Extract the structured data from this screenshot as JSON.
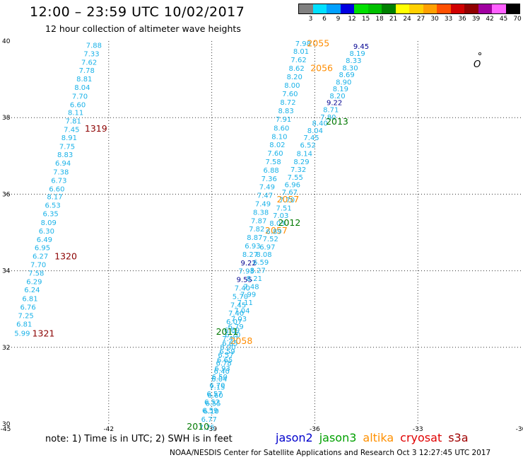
{
  "header": {
    "title": "12:00 – 23:59 UTC 10/02/2017",
    "subtitle": "12 hour collection of altimeter wave heights"
  },
  "color_scale": {
    "unit": "(ft)",
    "bins": [
      {
        "label": "3",
        "color": "#808080"
      },
      {
        "label": "6",
        "color": "#00e0ff"
      },
      {
        "label": "9",
        "color": "#00a0ff"
      },
      {
        "label": "12",
        "color": "#0000e0"
      },
      {
        "label": "15",
        "color": "#00e000"
      },
      {
        "label": "18",
        "color": "#00c000"
      },
      {
        "label": "21",
        "color": "#008000"
      },
      {
        "label": "24",
        "color": "#ffff00"
      },
      {
        "label": "27",
        "color": "#ffd000"
      },
      {
        "label": "30",
        "color": "#ffa000"
      },
      {
        "label": "33",
        "color": "#ff5000"
      },
      {
        "label": "36",
        "color": "#d00000"
      },
      {
        "label": "39",
        "color": "#900000"
      },
      {
        "label": "42",
        "color": "#a000a0"
      },
      {
        "label": "45",
        "color": "#ff60ff"
      },
      {
        "label": "70",
        "color": "#000000"
      }
    ]
  },
  "map": {
    "lon_range": [
      -45,
      -30
    ],
    "lat_range": [
      30,
      40
    ],
    "lon_ticks": [
      "-45",
      "-42",
      "-39",
      "-36",
      "-33",
      "-30"
    ],
    "lat_ticks": [
      "30",
      "32",
      "34",
      "36",
      "38",
      "40"
    ],
    "island_label": "O",
    "colors": {
      "cyan": "#1ab2e8",
      "darkblue": "#000090",
      "green": "#007800",
      "orange": "#ff8c00",
      "darkred": "#8b0000"
    },
    "values": [
      {
        "t": "7.88",
        "lon": -42.43,
        "lat": 39.88,
        "c": "cyan"
      },
      {
        "t": "7.33",
        "lon": -42.5,
        "lat": 39.66,
        "c": "cyan"
      },
      {
        "t": "7.62",
        "lon": -42.57,
        "lat": 39.44,
        "c": "cyan"
      },
      {
        "t": "7.78",
        "lon": -42.64,
        "lat": 39.22,
        "c": "cyan"
      },
      {
        "t": "8.81",
        "lon": -42.71,
        "lat": 39.0,
        "c": "cyan"
      },
      {
        "t": "8.04",
        "lon": -42.77,
        "lat": 38.78,
        "c": "cyan"
      },
      {
        "t": "7.70",
        "lon": -42.84,
        "lat": 38.55,
        "c": "cyan"
      },
      {
        "t": "6.60",
        "lon": -42.9,
        "lat": 38.33,
        "c": "cyan"
      },
      {
        "t": "8.11",
        "lon": -42.96,
        "lat": 38.12,
        "c": "cyan"
      },
      {
        "t": "7.81",
        "lon": -43.03,
        "lat": 37.9,
        "c": "cyan"
      },
      {
        "t": "7.45",
        "lon": -43.08,
        "lat": 37.68,
        "c": "cyan"
      },
      {
        "t": "8.91",
        "lon": -43.15,
        "lat": 37.47,
        "c": "cyan"
      },
      {
        "t": "7.75",
        "lon": -43.21,
        "lat": 37.24,
        "c": "cyan"
      },
      {
        "t": "8.83",
        "lon": -43.27,
        "lat": 37.02,
        "c": "cyan"
      },
      {
        "t": "6.94",
        "lon": -43.33,
        "lat": 36.8,
        "c": "cyan"
      },
      {
        "t": "7.38",
        "lon": -43.39,
        "lat": 36.57,
        "c": "cyan"
      },
      {
        "t": "6.73",
        "lon": -43.45,
        "lat": 36.35,
        "c": "cyan"
      },
      {
        "t": "6.60",
        "lon": -43.51,
        "lat": 36.13,
        "c": "cyan"
      },
      {
        "t": "8.17",
        "lon": -43.57,
        "lat": 35.92,
        "c": "cyan"
      },
      {
        "t": "6.53",
        "lon": -43.63,
        "lat": 35.7,
        "c": "cyan"
      },
      {
        "t": "6.35",
        "lon": -43.69,
        "lat": 35.48,
        "c": "cyan"
      },
      {
        "t": "8.09",
        "lon": -43.75,
        "lat": 35.25,
        "c": "cyan"
      },
      {
        "t": "6.30",
        "lon": -43.81,
        "lat": 35.03,
        "c": "cyan"
      },
      {
        "t": "6.49",
        "lon": -43.87,
        "lat": 34.81,
        "c": "cyan"
      },
      {
        "t": "6.95",
        "lon": -43.93,
        "lat": 34.59,
        "c": "cyan"
      },
      {
        "t": "6.27",
        "lon": -43.99,
        "lat": 34.37,
        "c": "cyan"
      },
      {
        "t": "7.70",
        "lon": -44.05,
        "lat": 34.15,
        "c": "cyan"
      },
      {
        "t": "7.58",
        "lon": -44.11,
        "lat": 33.93,
        "c": "cyan"
      },
      {
        "t": "6.29",
        "lon": -44.17,
        "lat": 33.71,
        "c": "cyan"
      },
      {
        "t": "6.24",
        "lon": -44.23,
        "lat": 33.49,
        "c": "cyan"
      },
      {
        "t": "6.81",
        "lon": -44.29,
        "lat": 33.26,
        "c": "cyan"
      },
      {
        "t": "6.76",
        "lon": -44.35,
        "lat": 33.04,
        "c": "cyan"
      },
      {
        "t": "7.25",
        "lon": -44.41,
        "lat": 32.82,
        "c": "cyan"
      },
      {
        "t": "6.81",
        "lon": -44.46,
        "lat": 32.6,
        "c": "cyan"
      },
      {
        "t": "5.99",
        "lon": -44.52,
        "lat": 32.36,
        "c": "cyan"
      },
      {
        "t": "1319",
        "lon": -42.37,
        "lat": 37.7,
        "c": "darkred",
        "big": true
      },
      {
        "t": "1320",
        "lon": -43.25,
        "lat": 34.36,
        "c": "darkred",
        "big": true
      },
      {
        "t": "1321",
        "lon": -43.9,
        "lat": 32.35,
        "c": "darkred",
        "big": true
      },
      {
        "t": "7.98",
        "lon": -36.34,
        "lat": 39.93,
        "c": "cyan"
      },
      {
        "t": "8.01",
        "lon": -36.4,
        "lat": 39.72,
        "c": "cyan"
      },
      {
        "t": "7.62",
        "lon": -36.47,
        "lat": 39.5,
        "c": "cyan"
      },
      {
        "t": "8.62",
        "lon": -36.53,
        "lat": 39.28,
        "c": "cyan"
      },
      {
        "t": "8.20",
        "lon": -36.59,
        "lat": 39.06,
        "c": "cyan"
      },
      {
        "t": "8.00",
        "lon": -36.66,
        "lat": 38.84,
        "c": "cyan"
      },
      {
        "t": "7.60",
        "lon": -36.72,
        "lat": 38.61,
        "c": "cyan"
      },
      {
        "t": "8.72",
        "lon": -36.78,
        "lat": 38.39,
        "c": "cyan"
      },
      {
        "t": "8.83",
        "lon": -36.84,
        "lat": 38.17,
        "c": "cyan"
      },
      {
        "t": "7.91",
        "lon": -36.91,
        "lat": 37.95,
        "c": "cyan"
      },
      {
        "t": "8.60",
        "lon": -36.97,
        "lat": 37.72,
        "c": "cyan"
      },
      {
        "t": "8.10",
        "lon": -37.03,
        "lat": 37.5,
        "c": "cyan"
      },
      {
        "t": "8.02",
        "lon": -37.09,
        "lat": 37.28,
        "c": "cyan"
      },
      {
        "t": "7.60",
        "lon": -37.15,
        "lat": 37.06,
        "c": "cyan"
      },
      {
        "t": "7.58",
        "lon": -37.21,
        "lat": 36.84,
        "c": "cyan"
      },
      {
        "t": "6.88",
        "lon": -37.27,
        "lat": 36.62,
        "c": "cyan"
      },
      {
        "t": "7.36",
        "lon": -37.33,
        "lat": 36.4,
        "c": "cyan"
      },
      {
        "t": "7.49",
        "lon": -37.39,
        "lat": 36.18,
        "c": "cyan"
      },
      {
        "t": "7.47",
        "lon": -37.45,
        "lat": 35.96,
        "c": "cyan"
      },
      {
        "t": "7.49",
        "lon": -37.51,
        "lat": 35.74,
        "c": "cyan"
      },
      {
        "t": "8.38",
        "lon": -37.57,
        "lat": 35.52,
        "c": "cyan"
      },
      {
        "t": "7.87",
        "lon": -37.63,
        "lat": 35.3,
        "c": "cyan"
      },
      {
        "t": "7.82",
        "lon": -37.69,
        "lat": 35.08,
        "c": "cyan"
      },
      {
        "t": "8.87",
        "lon": -37.75,
        "lat": 34.86,
        "c": "cyan"
      },
      {
        "t": "6.93",
        "lon": -37.81,
        "lat": 34.64,
        "c": "cyan"
      },
      {
        "t": "8.27",
        "lon": -37.88,
        "lat": 34.42,
        "c": "cyan"
      },
      {
        "t": "9.22",
        "lon": -37.93,
        "lat": 34.2,
        "c": "darkblue"
      },
      {
        "t": "7.93",
        "lon": -37.99,
        "lat": 33.98,
        "c": "cyan"
      },
      {
        "t": "9.55",
        "lon": -38.05,
        "lat": 33.76,
        "c": "darkblue"
      },
      {
        "t": "7.40",
        "lon": -38.11,
        "lat": 33.54,
        "c": "cyan"
      },
      {
        "t": "5.70",
        "lon": -38.17,
        "lat": 33.32,
        "c": "cyan"
      },
      {
        "t": "7.45",
        "lon": -38.23,
        "lat": 33.1,
        "c": "cyan"
      },
      {
        "t": "7.40",
        "lon": -38.29,
        "lat": 32.88,
        "c": "cyan"
      },
      {
        "t": "6.07",
        "lon": -38.35,
        "lat": 32.66,
        "c": "cyan"
      },
      {
        "t": "6.69",
        "lon": -38.41,
        "lat": 32.44,
        "c": "cyan"
      },
      {
        "t": "7.40",
        "lon": -38.47,
        "lat": 32.22,
        "c": "cyan"
      },
      {
        "t": "8.00",
        "lon": -38.53,
        "lat": 32.0,
        "c": "cyan"
      },
      {
        "t": "6.57",
        "lon": -38.59,
        "lat": 31.79,
        "c": "cyan"
      },
      {
        "t": "6.78",
        "lon": -38.65,
        "lat": 31.58,
        "c": "cyan"
      },
      {
        "t": "6.40",
        "lon": -38.71,
        "lat": 31.37,
        "c": "cyan"
      },
      {
        "t": "6.04",
        "lon": -38.78,
        "lat": 31.16,
        "c": "cyan"
      },
      {
        "t": "7.15",
        "lon": -38.84,
        "lat": 30.95,
        "c": "cyan"
      },
      {
        "t": "6.60",
        "lon": -38.9,
        "lat": 30.74,
        "c": "cyan"
      },
      {
        "t": "6.55",
        "lon": -38.96,
        "lat": 30.53,
        "c": "cyan"
      },
      {
        "t": "6.10",
        "lon": -39.02,
        "lat": 30.32,
        "c": "cyan"
      },
      {
        "t": "6.77",
        "lon": -39.08,
        "lat": 30.11,
        "c": "cyan"
      },
      {
        "t": "7.75",
        "lon": -39.14,
        "lat": 29.9,
        "c": "cyan"
      },
      {
        "t": "2055",
        "lon": -35.9,
        "lat": 39.93,
        "c": "orange",
        "big": true
      },
      {
        "t": "2056",
        "lon": -35.8,
        "lat": 39.28,
        "c": "orange",
        "big": true
      },
      {
        "t": "2057",
        "lon": -36.78,
        "lat": 35.85,
        "c": "orange",
        "big": true
      },
      {
        "t": "2057",
        "lon": -37.12,
        "lat": 35.04,
        "c": "orange",
        "big": true
      },
      {
        "t": "2058",
        "lon": -38.14,
        "lat": 32.15,
        "c": "orange",
        "big": true
      },
      {
        "t": "9.45",
        "lon": -34.65,
        "lat": 39.85,
        "c": "darkblue"
      },
      {
        "t": "8.19",
        "lon": -34.76,
        "lat": 39.67,
        "c": "cyan"
      },
      {
        "t": "8.33",
        "lon": -34.87,
        "lat": 39.48,
        "c": "cyan"
      },
      {
        "t": "8.30",
        "lon": -34.97,
        "lat": 39.29,
        "c": "cyan"
      },
      {
        "t": "8.69",
        "lon": -35.07,
        "lat": 39.11,
        "c": "cyan"
      },
      {
        "t": "8.90",
        "lon": -35.16,
        "lat": 38.92,
        "c": "cyan"
      },
      {
        "t": "8.19",
        "lon": -35.25,
        "lat": 38.74,
        "c": "cyan"
      },
      {
        "t": "8.20",
        "lon": -35.34,
        "lat": 38.56,
        "c": "cyan"
      },
      {
        "t": "9.22",
        "lon": -35.43,
        "lat": 38.38,
        "c": "darkblue"
      },
      {
        "t": "8.71",
        "lon": -35.53,
        "lat": 38.2,
        "c": "cyan"
      },
      {
        "t": "7.80",
        "lon": -35.61,
        "lat": 38.0,
        "c": "cyan"
      },
      {
        "t": "8.40",
        "lon": -35.85,
        "lat": 37.85,
        "c": "cyan"
      },
      {
        "t": "8.04",
        "lon": -35.99,
        "lat": 37.65,
        "c": "cyan"
      },
      {
        "t": "7.45",
        "lon": -36.1,
        "lat": 37.47,
        "c": "cyan"
      },
      {
        "t": "6.52",
        "lon": -36.2,
        "lat": 37.27,
        "c": "cyan"
      },
      {
        "t": "8.14",
        "lon": -36.3,
        "lat": 37.05,
        "c": "cyan"
      },
      {
        "t": "8.29",
        "lon": -36.39,
        "lat": 36.84,
        "c": "cyan"
      },
      {
        "t": "7.32",
        "lon": -36.48,
        "lat": 36.64,
        "c": "cyan"
      },
      {
        "t": "7.55",
        "lon": -36.57,
        "lat": 36.43,
        "c": "cyan"
      },
      {
        "t": "6.96",
        "lon": -36.65,
        "lat": 36.24,
        "c": "cyan"
      },
      {
        "t": "7.67",
        "lon": -36.73,
        "lat": 36.04,
        "c": "cyan"
      },
      {
        "t": "7.70",
        "lon": -36.81,
        "lat": 35.84,
        "c": "cyan"
      },
      {
        "t": "7.51",
        "lon": -36.9,
        "lat": 35.63,
        "c": "cyan"
      },
      {
        "t": "7.03",
        "lon": -36.99,
        "lat": 35.43,
        "c": "cyan"
      },
      {
        "t": "8.03",
        "lon": -37.09,
        "lat": 35.23,
        "c": "cyan"
      },
      {
        "t": "6.89",
        "lon": -37.19,
        "lat": 35.02,
        "c": "cyan"
      },
      {
        "t": "7.52",
        "lon": -37.29,
        "lat": 34.82,
        "c": "cyan"
      },
      {
        "t": "6.97",
        "lon": -37.38,
        "lat": 34.61,
        "c": "cyan"
      },
      {
        "t": "8.08",
        "lon": -37.48,
        "lat": 34.42,
        "c": "cyan"
      },
      {
        "t": "6.59",
        "lon": -37.57,
        "lat": 34.21,
        "c": "cyan"
      },
      {
        "t": "8.27",
        "lon": -37.66,
        "lat": 34.0,
        "c": "cyan"
      },
      {
        "t": "8.21",
        "lon": -37.76,
        "lat": 33.79,
        "c": "cyan"
      },
      {
        "t": "7.48",
        "lon": -37.85,
        "lat": 33.58,
        "c": "cyan"
      },
      {
        "t": "7.99",
        "lon": -37.94,
        "lat": 33.37,
        "c": "cyan"
      },
      {
        "t": "7.11",
        "lon": -38.03,
        "lat": 33.16,
        "c": "cyan"
      },
      {
        "t": "7.04",
        "lon": -38.12,
        "lat": 32.95,
        "c": "cyan"
      },
      {
        "t": "7.03",
        "lon": -38.21,
        "lat": 32.74,
        "c": "cyan"
      },
      {
        "t": "6.79",
        "lon": -38.3,
        "lat": 32.53,
        "c": "cyan"
      },
      {
        "t": "6.70",
        "lon": -38.39,
        "lat": 32.32,
        "c": "cyan"
      },
      {
        "t": "6.65",
        "lon": -38.47,
        "lat": 32.1,
        "c": "cyan"
      },
      {
        "t": "6.59",
        "lon": -38.55,
        "lat": 31.89,
        "c": "cyan"
      },
      {
        "t": "6.65",
        "lon": -38.62,
        "lat": 31.66,
        "c": "cyan"
      },
      {
        "t": "6.93",
        "lon": -38.69,
        "lat": 31.44,
        "c": "cyan"
      },
      {
        "t": "6.50",
        "lon": -38.77,
        "lat": 31.22,
        "c": "cyan"
      },
      {
        "t": "6.70",
        "lon": -38.84,
        "lat": 31.0,
        "c": "cyan"
      },
      {
        "t": "6.57",
        "lon": -38.92,
        "lat": 30.78,
        "c": "cyan"
      },
      {
        "t": "6.52",
        "lon": -38.99,
        "lat": 30.56,
        "c": "cyan"
      },
      {
        "t": "6.59",
        "lon": -39.05,
        "lat": 30.34,
        "c": "cyan"
      },
      {
        "t": "2013",
        "lon": -35.35,
        "lat": 37.88,
        "c": "green",
        "big": true
      },
      {
        "t": "2012",
        "lon": -36.74,
        "lat": 35.24,
        "c": "green",
        "big": true
      },
      {
        "t": "2011",
        "lon": -38.55,
        "lat": 32.39,
        "c": "green",
        "big": true
      },
      {
        "t": "2010",
        "lon": -39.4,
        "lat": 29.92,
        "c": "green",
        "big": true
      }
    ]
  },
  "footer": {
    "note": "note:  1) Time is in UTC;  2) SWH is in feet",
    "satellites": [
      {
        "name": "jason2",
        "color": "#0000cc"
      },
      {
        "name": "jason3",
        "color": "#00a000"
      },
      {
        "name": "altika",
        "color": "#ff9000"
      },
      {
        "name": "cryosat",
        "color": "#e00000"
      },
      {
        "name": "s3a",
        "color": "#a00000"
      }
    ],
    "credit": "NOAA/NESDIS Center for Satellite Applications and Research    Oct  3 12:27:45 UTC 2017"
  }
}
